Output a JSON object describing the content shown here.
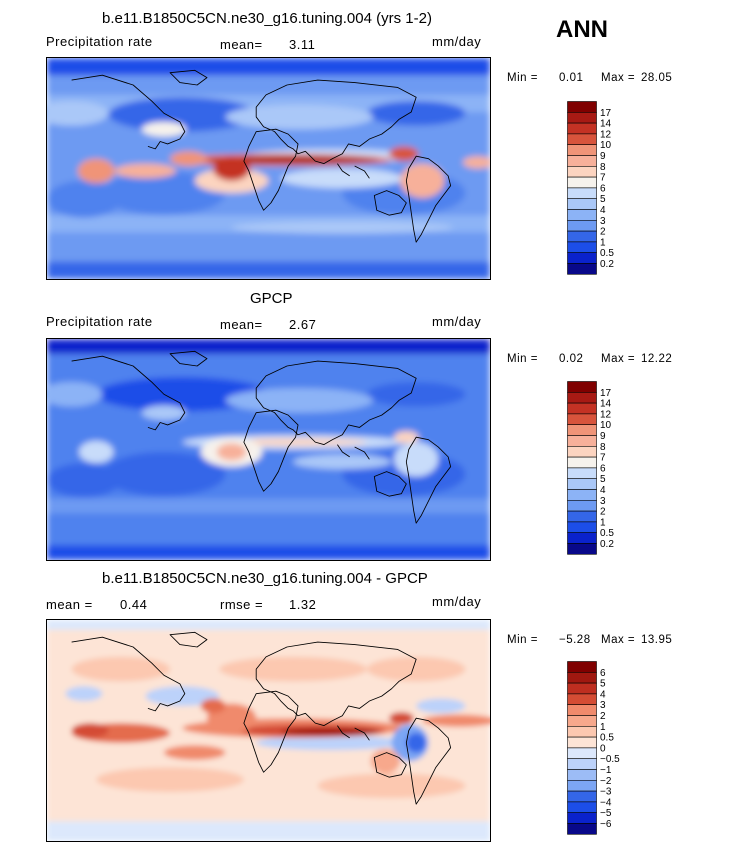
{
  "season": "ANN",
  "coast_icon": "world-coastline-icon",
  "colors": {
    "precip": [
      "#08088a",
      "#0a22cc",
      "#1c4ee8",
      "#3466e8",
      "#4f82ee",
      "#6d9af2",
      "#8cb3f6",
      "#aac8f8",
      "#c8dcfa",
      "#f6f2ec",
      "#fcd4c0",
      "#f7b09a",
      "#f09478",
      "#e77458",
      "#d8543c",
      "#c43224",
      "#a81a14",
      "#800000"
    ],
    "diff": [
      "#08088a",
      "#0a22cc",
      "#1c4ee8",
      "#3466e8",
      "#5a8ef0",
      "#7ca6f4",
      "#9cbcf6",
      "#bcd2fa",
      "#dce8fc",
      "#fde4d6",
      "#fcc8b0",
      "#f7a88c",
      "#f08a6c",
      "#e46c4e",
      "#d44c34",
      "#be2e20",
      "#a01810",
      "#800000"
    ]
  },
  "panels": [
    {
      "title": "b.e11.B1850C5CN.ne30_g16.tuning.004 (yrs 1-2)",
      "left_label": "Precipitation rate",
      "stat1_name": "mean=",
      "stat1_value": "3.11",
      "stat2_name": "",
      "stat2_value": "",
      "units": "mm/day",
      "min_label": "Min =",
      "min_value": "0.01",
      "max_label": "Max =",
      "max_value": "28.05",
      "scale": "precip",
      "levels": [
        "17",
        "14",
        "12",
        "10",
        "9",
        "8",
        "7",
        "6",
        "5",
        "4",
        "3",
        "2",
        "1",
        "0.5",
        "0.2"
      ]
    },
    {
      "title": "GPCP",
      "left_label": "Precipitation rate",
      "stat1_name": "mean=",
      "stat1_value": "2.67",
      "stat2_name": "",
      "stat2_value": "",
      "units": "mm/day",
      "min_label": "Min =",
      "min_value": "0.02",
      "max_label": "Max =",
      "max_value": "12.22",
      "scale": "precip",
      "levels": [
        "17",
        "14",
        "12",
        "10",
        "9",
        "8",
        "7",
        "6",
        "5",
        "4",
        "3",
        "2",
        "1",
        "0.5",
        "0.2"
      ]
    },
    {
      "title": "b.e11.B1850C5CN.ne30_g16.tuning.004 - GPCP",
      "left_label": "",
      "stat1_name": "mean =",
      "stat1_value": "0.44",
      "stat2_name": "rmse =",
      "stat2_value": "1.32",
      "units": "mm/day",
      "min_label": "Min =",
      "min_value": "−5.28",
      "max_label": "Max =",
      "max_value": "13.95",
      "scale": "diff",
      "levels": [
        "6",
        "5",
        "4",
        "3",
        "2",
        "1",
        "0.5",
        "0",
        "−0.5",
        "−1",
        "−2",
        "−3",
        "−4",
        "−5",
        "−6"
      ]
    }
  ]
}
